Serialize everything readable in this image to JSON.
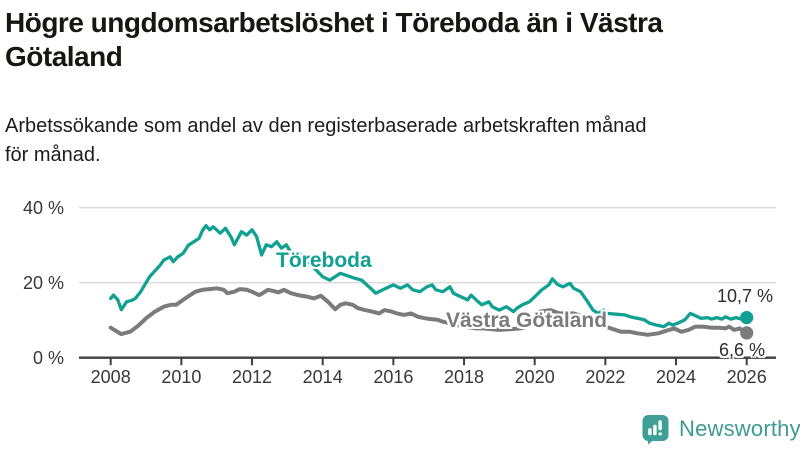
{
  "chart_data": {
    "type": "line",
    "title": "Högre ungdomsarbetslöshet i Töreboda än i Västra Götaland",
    "title_lines": [
      "Högre ungdomsarbetslöshet i Töreboda än i Västra",
      "Götaland"
    ],
    "subtitle": "Arbetssökande som andel av den registerbaserade arbetskraften månad för månad.",
    "subtitle_lines": [
      "Arbetssökande som andel av den registerbaserade arbetskraften månad",
      "för månad."
    ],
    "grid": "horizontal",
    "legend": "inline-labels",
    "x_axis": {
      "ticks": [
        2008,
        2010,
        2012,
        2014,
        2016,
        2018,
        2020,
        2022,
        2024,
        2026
      ],
      "range": [
        2007.1,
        2026.8
      ]
    },
    "y_axis": {
      "unit": "%",
      "range": [
        0,
        40
      ],
      "ticks": [
        {
          "value": 0,
          "label": "0 %"
        },
        {
          "value": 20,
          "label": "20 %"
        },
        {
          "value": 40,
          "label": "40 %"
        }
      ]
    },
    "series": [
      {
        "name": "Töreboda",
        "color": "#11a192",
        "stroke_width": 3.3,
        "end_label": "10,7 %",
        "end_value": 10.7,
        "points": [
          [
            2008.0,
            15.8
          ],
          [
            2008.08,
            16.7
          ],
          [
            2008.2,
            15.4
          ],
          [
            2008.3,
            12.8
          ],
          [
            2008.45,
            14.9
          ],
          [
            2008.6,
            15.3
          ],
          [
            2008.7,
            15.8
          ],
          [
            2008.85,
            17.6
          ],
          [
            2009.1,
            21.6
          ],
          [
            2009.4,
            24.7
          ],
          [
            2009.5,
            26.0
          ],
          [
            2009.68,
            26.9
          ],
          [
            2009.77,
            25.6
          ],
          [
            2009.9,
            26.9
          ],
          [
            2010.05,
            27.8
          ],
          [
            2010.2,
            30.0
          ],
          [
            2010.35,
            30.9
          ],
          [
            2010.5,
            31.8
          ],
          [
            2010.6,
            34.0
          ],
          [
            2010.7,
            35.2
          ],
          [
            2010.8,
            34.1
          ],
          [
            2010.9,
            34.9
          ],
          [
            2011.1,
            33.2
          ],
          [
            2011.25,
            34.5
          ],
          [
            2011.4,
            32.3
          ],
          [
            2011.5,
            30.1
          ],
          [
            2011.7,
            33.6
          ],
          [
            2011.85,
            32.7
          ],
          [
            2012.0,
            34.1
          ],
          [
            2012.13,
            32.3
          ],
          [
            2012.27,
            27.4
          ],
          [
            2012.4,
            30.1
          ],
          [
            2012.55,
            29.6
          ],
          [
            2012.7,
            30.9
          ],
          [
            2012.83,
            29.2
          ],
          [
            2012.97,
            30.1
          ],
          [
            2013.17,
            26.9
          ],
          [
            2013.35,
            27.8
          ],
          [
            2013.6,
            25.5
          ],
          [
            2013.8,
            23.5
          ],
          [
            2014.0,
            21.6
          ],
          [
            2014.2,
            20.7
          ],
          [
            2014.5,
            22.5
          ],
          [
            2014.9,
            21.2
          ],
          [
            2015.1,
            20.7
          ],
          [
            2015.4,
            18.1
          ],
          [
            2015.5,
            17.2
          ],
          [
            2015.7,
            18.1
          ],
          [
            2016.0,
            19.4
          ],
          [
            2016.2,
            18.5
          ],
          [
            2016.4,
            19.4
          ],
          [
            2016.55,
            18.1
          ],
          [
            2016.75,
            17.6
          ],
          [
            2016.95,
            18.9
          ],
          [
            2017.1,
            19.4
          ],
          [
            2017.2,
            18.1
          ],
          [
            2017.4,
            17.6
          ],
          [
            2017.6,
            18.9
          ],
          [
            2017.7,
            17.2
          ],
          [
            2017.9,
            16.3
          ],
          [
            2018.1,
            15.4
          ],
          [
            2018.2,
            16.7
          ],
          [
            2018.4,
            14.9
          ],
          [
            2018.5,
            14.1
          ],
          [
            2018.7,
            14.9
          ],
          [
            2018.8,
            13.6
          ],
          [
            2019.0,
            12.7
          ],
          [
            2019.2,
            13.6
          ],
          [
            2019.4,
            12.3
          ],
          [
            2019.5,
            13.2
          ],
          [
            2019.65,
            14.1
          ],
          [
            2019.85,
            14.9
          ],
          [
            2020.05,
            16.7
          ],
          [
            2020.2,
            18.1
          ],
          [
            2020.4,
            19.4
          ],
          [
            2020.5,
            21.0
          ],
          [
            2020.65,
            19.5
          ],
          [
            2020.8,
            18.9
          ],
          [
            2021.0,
            19.8
          ],
          [
            2021.1,
            18.5
          ],
          [
            2021.3,
            17.6
          ],
          [
            2021.5,
            14.9
          ],
          [
            2021.65,
            12.7
          ],
          [
            2021.8,
            11.8
          ],
          [
            2021.95,
            12.7
          ],
          [
            2022.05,
            11.8
          ],
          [
            2022.3,
            11.6
          ],
          [
            2022.55,
            11.4
          ],
          [
            2022.7,
            10.9
          ],
          [
            2022.9,
            10.5
          ],
          [
            2023.1,
            10.1
          ],
          [
            2023.25,
            9.2
          ],
          [
            2023.45,
            8.7
          ],
          [
            2023.65,
            8.3
          ],
          [
            2023.8,
            9.2
          ],
          [
            2023.9,
            8.7
          ],
          [
            2024.05,
            9.2
          ],
          [
            2024.25,
            10.1
          ],
          [
            2024.4,
            11.8
          ],
          [
            2024.5,
            11.4
          ],
          [
            2024.7,
            10.5
          ],
          [
            2024.9,
            10.7
          ],
          [
            2025.0,
            10.3
          ],
          [
            2025.15,
            10.7
          ],
          [
            2025.3,
            10.3
          ],
          [
            2025.4,
            10.9
          ],
          [
            2025.55,
            10.3
          ],
          [
            2025.7,
            10.7
          ],
          [
            2025.85,
            10.3
          ],
          [
            2026.0,
            10.7
          ]
        ]
      },
      {
        "name": "Västra Götaland",
        "color": "#7b7b7b",
        "stroke_width": 4,
        "end_label": "6,6 %",
        "end_value": 6.6,
        "points": [
          [
            2008.0,
            8.0
          ],
          [
            2008.1,
            7.4
          ],
          [
            2008.3,
            6.3
          ],
          [
            2008.55,
            6.9
          ],
          [
            2008.8,
            8.7
          ],
          [
            2009.0,
            10.5
          ],
          [
            2009.25,
            12.3
          ],
          [
            2009.5,
            13.6
          ],
          [
            2009.7,
            14.1
          ],
          [
            2009.85,
            14.1
          ],
          [
            2010.05,
            15.4
          ],
          [
            2010.25,
            16.7
          ],
          [
            2010.4,
            17.6
          ],
          [
            2010.6,
            18.1
          ],
          [
            2010.8,
            18.3
          ],
          [
            2011.0,
            18.5
          ],
          [
            2011.2,
            18.1
          ],
          [
            2011.3,
            17.2
          ],
          [
            2011.5,
            17.6
          ],
          [
            2011.65,
            18.3
          ],
          [
            2011.85,
            18.1
          ],
          [
            2012.0,
            17.6
          ],
          [
            2012.2,
            16.7
          ],
          [
            2012.3,
            17.2
          ],
          [
            2012.45,
            18.1
          ],
          [
            2012.6,
            17.8
          ],
          [
            2012.75,
            17.4
          ],
          [
            2012.9,
            18.1
          ],
          [
            2013.1,
            17.2
          ],
          [
            2013.3,
            16.7
          ],
          [
            2013.55,
            16.3
          ],
          [
            2013.75,
            15.8
          ],
          [
            2013.95,
            16.5
          ],
          [
            2014.15,
            14.9
          ],
          [
            2014.35,
            12.9
          ],
          [
            2014.5,
            14.1
          ],
          [
            2014.65,
            14.5
          ],
          [
            2014.85,
            14.1
          ],
          [
            2015.0,
            13.2
          ],
          [
            2015.2,
            12.7
          ],
          [
            2015.4,
            12.3
          ],
          [
            2015.6,
            11.8
          ],
          [
            2015.75,
            12.7
          ],
          [
            2015.95,
            12.3
          ],
          [
            2016.1,
            11.8
          ],
          [
            2016.3,
            11.4
          ],
          [
            2016.5,
            11.8
          ],
          [
            2016.7,
            10.9
          ],
          [
            2016.9,
            10.5
          ],
          [
            2017.05,
            10.3
          ],
          [
            2017.25,
            10.1
          ],
          [
            2017.4,
            9.6
          ],
          [
            2017.6,
            9.2
          ],
          [
            2017.8,
            8.7
          ],
          [
            2018.0,
            8.3
          ],
          [
            2018.2,
            8.0
          ],
          [
            2018.35,
            7.8
          ],
          [
            2018.55,
            7.8
          ],
          [
            2018.8,
            7.6
          ],
          [
            2019.0,
            7.4
          ],
          [
            2019.3,
            7.6
          ],
          [
            2019.6,
            7.8
          ],
          [
            2019.9,
            8.7
          ],
          [
            2020.15,
            12.3
          ],
          [
            2020.45,
            12.7
          ],
          [
            2020.7,
            11.8
          ],
          [
            2021.1,
            11.8
          ],
          [
            2021.4,
            10.9
          ],
          [
            2021.7,
            9.6
          ],
          [
            2022.0,
            8.3
          ],
          [
            2022.45,
            6.9
          ],
          [
            2022.7,
            6.9
          ],
          [
            2022.9,
            6.5
          ],
          [
            2023.2,
            6.1
          ],
          [
            2023.5,
            6.5
          ],
          [
            2023.8,
            7.4
          ],
          [
            2023.95,
            7.8
          ],
          [
            2024.15,
            6.9
          ],
          [
            2024.35,
            7.4
          ],
          [
            2024.55,
            8.3
          ],
          [
            2024.75,
            8.3
          ],
          [
            2025.0,
            8.0
          ],
          [
            2025.2,
            8.0
          ],
          [
            2025.4,
            7.8
          ],
          [
            2025.5,
            8.3
          ],
          [
            2025.65,
            7.4
          ],
          [
            2025.8,
            7.8
          ],
          [
            2026.0,
            6.6
          ]
        ]
      }
    ]
  },
  "footer": {
    "brand": "Newsworthy",
    "logo_icon": "bar-chart-speech-bubble-icon"
  },
  "colors": {
    "accent_teal": "#11a192",
    "line_gray": "#7b7b7b",
    "grid": "#dadada",
    "axis": "#3f3f3f",
    "title_text": "#161613",
    "axis_text": "#383838",
    "brand_teal": "#3f9e96",
    "wordmark_teal": "#3f9a92",
    "background": "#ffffff"
  }
}
